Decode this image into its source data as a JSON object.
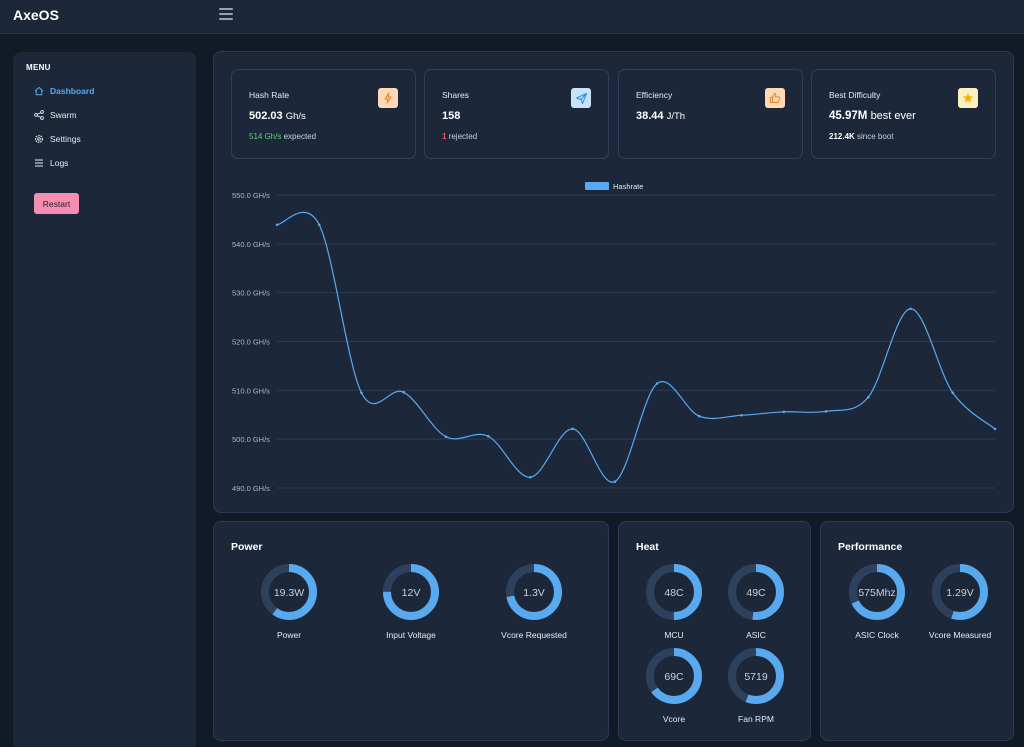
{
  "app": {
    "title": "AxeOS"
  },
  "sidebar": {
    "menu_title": "MENU",
    "items": [
      {
        "label": "Dashboard",
        "icon": "home-icon",
        "active": true
      },
      {
        "label": "Swarm",
        "icon": "share-icon",
        "active": false
      },
      {
        "label": "Settings",
        "icon": "gear-icon",
        "active": false
      },
      {
        "label": "Logs",
        "icon": "list-icon",
        "active": false
      }
    ],
    "restart_label": "Restart"
  },
  "stats": {
    "hash_rate": {
      "title": "Hash Rate",
      "value": "502.03",
      "unit": "Gh/s",
      "expected_value": "514",
      "expected_unit": "Gh/s",
      "expected_text": "expected",
      "icon": "bolt-icon",
      "icon_bg": "#fdd9b5",
      "icon_color": "#e67e22"
    },
    "shares": {
      "title": "Shares",
      "value": "158",
      "rejected_value": "1",
      "rejected_text": "rejected",
      "icon": "send-icon",
      "icon_bg": "#c7e3fb",
      "icon_color": "#2b8be0"
    },
    "efficiency": {
      "title": "Efficiency",
      "value": "38.44",
      "unit": "J/Th",
      "icon": "thumbs-up-icon",
      "icon_bg": "#fdd9b5",
      "icon_color": "#e67e22"
    },
    "best_difficulty": {
      "title": "Best Difficulty",
      "value": "45.97M",
      "value_suffix": "best ever",
      "since_value": "212.4K",
      "since_text": "since boot",
      "icon": "star-icon",
      "icon_bg": "#fdf0c0",
      "icon_color": "#f1b400"
    }
  },
  "chart_data": {
    "type": "line",
    "title": "",
    "series": [
      {
        "name": "Hashrate",
        "color": "#59a9ee",
        "values": [
          543.9,
          543.9,
          509.5,
          509.6,
          500.5,
          500.6,
          492.2,
          502.1,
          491.3,
          511.4,
          504.7,
          504.9,
          505.6,
          505.7,
          508.6,
          526.7,
          509.5,
          502.1
        ]
      }
    ],
    "x": [
      1,
      2,
      3,
      4,
      5,
      6,
      7,
      8,
      9,
      10,
      11,
      12,
      13,
      14,
      15,
      16,
      17,
      18
    ],
    "yticks": [
      "550.0 GH/s",
      "540.0 GH/s",
      "530.0 GH/s",
      "520.0 GH/s",
      "510.0 GH/s",
      "500.0 GH/s",
      "490.0 GH/s"
    ],
    "ylim": [
      490,
      550
    ],
    "grid": true,
    "legend_position": "top-center",
    "xlabel": "",
    "ylabel": ""
  },
  "power": {
    "title": "Power",
    "gauges": [
      {
        "value_text": "19.3W",
        "label": "Power",
        "fraction": 0.6
      },
      {
        "value_text": "12V",
        "label": "Input Voltage",
        "fraction": 0.75
      },
      {
        "value_text": "1.3V",
        "label": "Vcore Requested",
        "fraction": 0.72
      }
    ]
  },
  "heat": {
    "title": "Heat",
    "gauges": [
      {
        "value_text": "48C",
        "label": "MCU",
        "fraction": 0.5
      },
      {
        "value_text": "49C",
        "label": "ASIC",
        "fraction": 0.52
      },
      {
        "value_text": "69C",
        "label": "Vcore",
        "fraction": 0.65
      },
      {
        "value_text": "5719",
        "label": "Fan RPM",
        "fraction": 0.56
      }
    ]
  },
  "performance": {
    "title": "Performance",
    "gauges": [
      {
        "value_text": "575Mhz",
        "label": "ASIC Clock",
        "fraction": 0.68
      },
      {
        "value_text": "1.29V",
        "label": "Vcore Measured",
        "fraction": 0.55
      }
    ]
  },
  "colors": {
    "accent": "#59a9ee",
    "gauge_track": "#2e415c",
    "gauge_fill": "#59a9ee"
  }
}
